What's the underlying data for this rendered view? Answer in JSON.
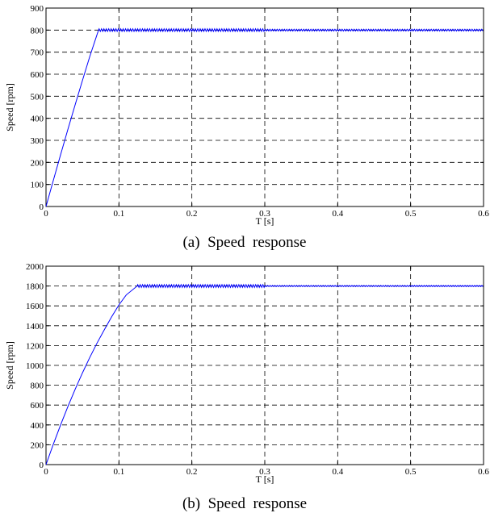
{
  "chart_data": [
    {
      "type": "line",
      "caption": "(a)  Speed  response",
      "xlabel": "T [s]",
      "ylabel": "Speed [rpm]",
      "xlim": [
        0,
        0.6
      ],
      "ylim": [
        0,
        900
      ],
      "xticks": [
        0,
        0.1,
        0.2,
        0.3,
        0.4,
        0.5,
        0.6
      ],
      "xtick_labels": [
        "0",
        "0.1",
        "0.2",
        "0.3",
        "0.4",
        "0.5",
        "0.6"
      ],
      "yticks": [
        0,
        100,
        200,
        300,
        400,
        500,
        600,
        700,
        800,
        900
      ],
      "ytick_labels": [
        "0",
        "100",
        "200",
        "300",
        "400",
        "500",
        "600",
        "700",
        "800",
        "900"
      ],
      "grid": true,
      "series": [
        {
          "color": "#0000ff",
          "x": [
            0,
            0.01,
            0.02,
            0.03,
            0.04,
            0.05,
            0.06,
            0.072,
            0.6
          ],
          "y": [
            0,
            118,
            235,
            350,
            462,
            572,
            680,
            800,
            800
          ],
          "ripple_amplitude": [
            [
              0.072,
              6
            ],
            [
              0.3,
              6
            ],
            [
              0.3,
              4
            ],
            [
              0.6,
              4
            ]
          ]
        }
      ]
    },
    {
      "type": "line",
      "caption": "(b)  Speed  response",
      "xlabel": "T [s]",
      "ylabel": "Speed [rpm]",
      "xlim": [
        0,
        0.6
      ],
      "ylim": [
        0,
        2000
      ],
      "xticks": [
        0,
        0.1,
        0.2,
        0.3,
        0.4,
        0.5,
        0.6
      ],
      "xtick_labels": [
        "0",
        "0.1",
        "0.2",
        "0.3",
        "0.4",
        "0.5",
        "0.6"
      ],
      "yticks": [
        0,
        200,
        400,
        600,
        800,
        1000,
        1200,
        1400,
        1600,
        1800,
        2000
      ],
      "ytick_labels": [
        "0",
        "200",
        "400",
        "600",
        "800",
        "1000",
        "1200",
        "1400",
        "1600",
        "1800",
        "2000"
      ],
      "grid": true,
      "series": [
        {
          "color": "#0000ff",
          "x": [
            0,
            0.01,
            0.02,
            0.03,
            0.04,
            0.05,
            0.06,
            0.07,
            0.08,
            0.09,
            0.1,
            0.11,
            0.125,
            0.6
          ],
          "y": [
            0,
            205,
            400,
            585,
            760,
            925,
            1080,
            1225,
            1360,
            1490,
            1610,
            1710,
            1800,
            1800
          ],
          "ripple_amplitude": [
            [
              0.125,
              14
            ],
            [
              0.3,
              14
            ],
            [
              0.3,
              6
            ],
            [
              0.6,
              6
            ]
          ]
        }
      ]
    }
  ]
}
